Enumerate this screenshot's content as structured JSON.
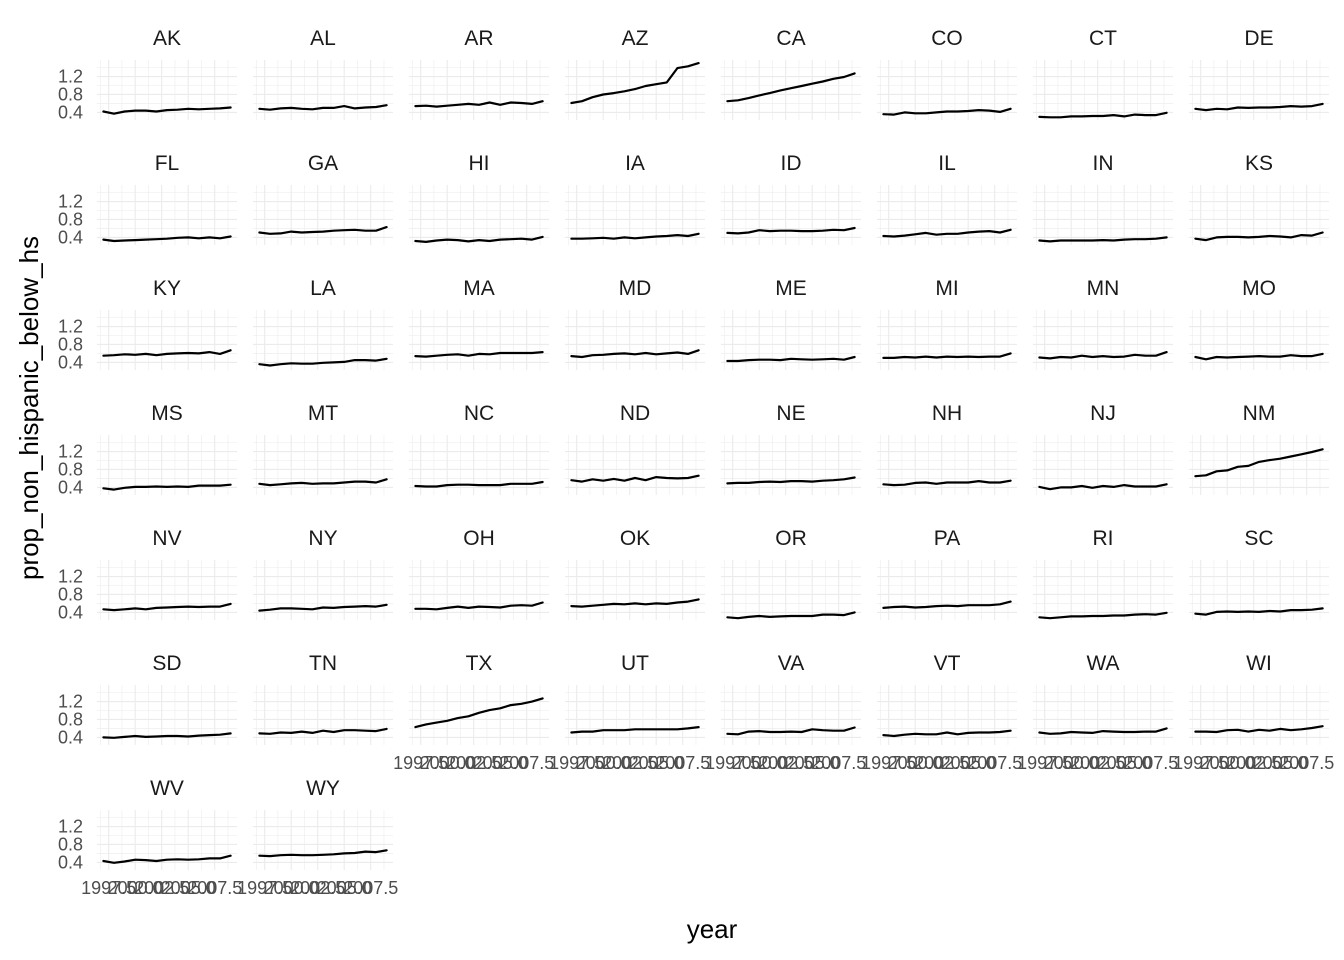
{
  "chart_data": {
    "type": "line",
    "layout": "facet_wrap",
    "xlabel": "year",
    "ylabel": "prop_non_hispanic_below_hs",
    "x_tick_labels": [
      "1997.5",
      "2000.0",
      "2002.5",
      "2005.0",
      "2007.5"
    ],
    "y_tick_labels": [
      "0.4",
      "0.8",
      "1.2"
    ],
    "x": [
      1997,
      1998,
      1999,
      2000,
      2001,
      2002,
      2003,
      2004,
      2005,
      2006,
      2007,
      2008,
      2009
    ],
    "xlim": [
      1996.4,
      2009.6
    ],
    "ylim": [
      0.23,
      1.57
    ],
    "y_ticks": [
      0.4,
      0.8,
      1.2
    ],
    "x_ticks": [
      1997.5,
      2000.0,
      2002.5,
      2005.0,
      2007.5
    ],
    "grid": true,
    "panels": [
      {
        "name": "AK",
        "values": [
          0.42,
          0.37,
          0.42,
          0.44,
          0.44,
          0.42,
          0.45,
          0.46,
          0.48,
          0.47,
          0.48,
          0.49,
          0.51
        ]
      },
      {
        "name": "AL",
        "values": [
          0.48,
          0.46,
          0.49,
          0.5,
          0.48,
          0.47,
          0.5,
          0.5,
          0.54,
          0.49,
          0.51,
          0.52,
          0.56
        ]
      },
      {
        "name": "AR",
        "values": [
          0.54,
          0.55,
          0.53,
          0.55,
          0.57,
          0.59,
          0.57,
          0.62,
          0.57,
          0.62,
          0.61,
          0.59,
          0.65
        ]
      },
      {
        "name": "AZ",
        "values": [
          0.61,
          0.65,
          0.74,
          0.8,
          0.83,
          0.87,
          0.92,
          0.99,
          1.03,
          1.07,
          1.39,
          1.43,
          1.5
        ]
      },
      {
        "name": "CA",
        "values": [
          0.65,
          0.67,
          0.72,
          0.78,
          0.83,
          0.89,
          0.94,
          0.99,
          1.04,
          1.09,
          1.15,
          1.19,
          1.27
        ]
      },
      {
        "name": "CO",
        "values": [
          0.36,
          0.35,
          0.4,
          0.38,
          0.38,
          0.4,
          0.42,
          0.42,
          0.43,
          0.45,
          0.44,
          0.41,
          0.48
        ]
      },
      {
        "name": "CT",
        "values": [
          0.3,
          0.29,
          0.29,
          0.31,
          0.31,
          0.32,
          0.32,
          0.34,
          0.31,
          0.35,
          0.34,
          0.34,
          0.39
        ]
      },
      {
        "name": "DE",
        "values": [
          0.48,
          0.45,
          0.48,
          0.47,
          0.51,
          0.5,
          0.51,
          0.51,
          0.52,
          0.54,
          0.53,
          0.54,
          0.59
        ]
      },
      {
        "name": "FL",
        "values": [
          0.35,
          0.32,
          0.33,
          0.34,
          0.35,
          0.36,
          0.37,
          0.39,
          0.4,
          0.38,
          0.4,
          0.38,
          0.42
        ]
      },
      {
        "name": "GA",
        "values": [
          0.51,
          0.48,
          0.49,
          0.53,
          0.51,
          0.52,
          0.53,
          0.55,
          0.56,
          0.57,
          0.55,
          0.55,
          0.63
        ]
      },
      {
        "name": "HI",
        "values": [
          0.32,
          0.3,
          0.33,
          0.35,
          0.34,
          0.31,
          0.34,
          0.32,
          0.35,
          0.36,
          0.37,
          0.35,
          0.41
        ]
      },
      {
        "name": "IA",
        "values": [
          0.37,
          0.37,
          0.38,
          0.39,
          0.37,
          0.4,
          0.38,
          0.4,
          0.42,
          0.43,
          0.45,
          0.43,
          0.48
        ]
      },
      {
        "name": "ID",
        "values": [
          0.5,
          0.49,
          0.51,
          0.56,
          0.54,
          0.55,
          0.55,
          0.54,
          0.54,
          0.55,
          0.57,
          0.56,
          0.61
        ]
      },
      {
        "name": "IL",
        "values": [
          0.43,
          0.42,
          0.44,
          0.47,
          0.5,
          0.46,
          0.48,
          0.48,
          0.51,
          0.53,
          0.54,
          0.51,
          0.57
        ]
      },
      {
        "name": "IN",
        "values": [
          0.33,
          0.31,
          0.33,
          0.33,
          0.33,
          0.33,
          0.34,
          0.33,
          0.35,
          0.36,
          0.36,
          0.37,
          0.4
        ]
      },
      {
        "name": "KS",
        "values": [
          0.37,
          0.34,
          0.4,
          0.41,
          0.41,
          0.4,
          0.41,
          0.43,
          0.42,
          0.4,
          0.45,
          0.44,
          0.51
        ]
      },
      {
        "name": "KY",
        "values": [
          0.55,
          0.56,
          0.58,
          0.57,
          0.59,
          0.56,
          0.59,
          0.6,
          0.61,
          0.6,
          0.63,
          0.59,
          0.67
        ]
      },
      {
        "name": "LA",
        "values": [
          0.36,
          0.33,
          0.36,
          0.38,
          0.37,
          0.37,
          0.39,
          0.4,
          0.41,
          0.45,
          0.45,
          0.44,
          0.48
        ]
      },
      {
        "name": "MA",
        "values": [
          0.54,
          0.53,
          0.55,
          0.57,
          0.58,
          0.55,
          0.59,
          0.58,
          0.61,
          0.61,
          0.61,
          0.61,
          0.63
        ]
      },
      {
        "name": "MD",
        "values": [
          0.54,
          0.52,
          0.56,
          0.57,
          0.59,
          0.6,
          0.58,
          0.61,
          0.58,
          0.6,
          0.62,
          0.59,
          0.67
        ]
      },
      {
        "name": "ME",
        "values": [
          0.43,
          0.43,
          0.45,
          0.46,
          0.46,
          0.45,
          0.48,
          0.47,
          0.46,
          0.47,
          0.48,
          0.46,
          0.52
        ]
      },
      {
        "name": "MI",
        "values": [
          0.5,
          0.5,
          0.52,
          0.51,
          0.53,
          0.51,
          0.53,
          0.52,
          0.53,
          0.52,
          0.53,
          0.53,
          0.6
        ]
      },
      {
        "name": "MN",
        "values": [
          0.51,
          0.49,
          0.52,
          0.51,
          0.55,
          0.52,
          0.54,
          0.52,
          0.53,
          0.57,
          0.55,
          0.55,
          0.63
        ]
      },
      {
        "name": "MO",
        "values": [
          0.52,
          0.47,
          0.52,
          0.51,
          0.52,
          0.53,
          0.54,
          0.53,
          0.53,
          0.56,
          0.54,
          0.54,
          0.59
        ]
      },
      {
        "name": "MS",
        "values": [
          0.38,
          0.35,
          0.39,
          0.41,
          0.41,
          0.42,
          0.41,
          0.42,
          0.41,
          0.44,
          0.44,
          0.44,
          0.46
        ]
      },
      {
        "name": "MT",
        "values": [
          0.48,
          0.45,
          0.47,
          0.49,
          0.5,
          0.48,
          0.49,
          0.49,
          0.51,
          0.53,
          0.53,
          0.51,
          0.58
        ]
      },
      {
        "name": "NC",
        "values": [
          0.43,
          0.42,
          0.42,
          0.45,
          0.46,
          0.46,
          0.45,
          0.45,
          0.45,
          0.48,
          0.48,
          0.48,
          0.52
        ]
      },
      {
        "name": "ND",
        "values": [
          0.56,
          0.53,
          0.58,
          0.55,
          0.59,
          0.55,
          0.61,
          0.56,
          0.63,
          0.61,
          0.6,
          0.61,
          0.66
        ]
      },
      {
        "name": "NE",
        "values": [
          0.49,
          0.5,
          0.5,
          0.52,
          0.53,
          0.52,
          0.54,
          0.54,
          0.53,
          0.55,
          0.56,
          0.58,
          0.62
        ]
      },
      {
        "name": "NH",
        "values": [
          0.47,
          0.45,
          0.46,
          0.5,
          0.51,
          0.48,
          0.51,
          0.51,
          0.51,
          0.54,
          0.51,
          0.51,
          0.55
        ]
      },
      {
        "name": "NJ",
        "values": [
          0.41,
          0.36,
          0.4,
          0.4,
          0.43,
          0.39,
          0.43,
          0.41,
          0.45,
          0.42,
          0.42,
          0.42,
          0.47
        ]
      },
      {
        "name": "NM",
        "values": [
          0.65,
          0.67,
          0.76,
          0.78,
          0.86,
          0.88,
          0.97,
          1.01,
          1.04,
          1.09,
          1.14,
          1.19,
          1.25
        ]
      },
      {
        "name": "NV",
        "values": [
          0.47,
          0.45,
          0.47,
          0.49,
          0.47,
          0.5,
          0.51,
          0.52,
          0.53,
          0.52,
          0.53,
          0.53,
          0.59
        ]
      },
      {
        "name": "NY",
        "values": [
          0.44,
          0.46,
          0.49,
          0.49,
          0.48,
          0.47,
          0.51,
          0.5,
          0.52,
          0.53,
          0.54,
          0.53,
          0.57
        ]
      },
      {
        "name": "OH",
        "values": [
          0.48,
          0.48,
          0.47,
          0.5,
          0.53,
          0.5,
          0.53,
          0.52,
          0.51,
          0.55,
          0.56,
          0.55,
          0.62
        ]
      },
      {
        "name": "OK",
        "values": [
          0.54,
          0.53,
          0.55,
          0.57,
          0.59,
          0.58,
          0.6,
          0.58,
          0.6,
          0.59,
          0.62,
          0.64,
          0.69
        ]
      },
      {
        "name": "OR",
        "values": [
          0.29,
          0.27,
          0.3,
          0.32,
          0.3,
          0.31,
          0.32,
          0.32,
          0.32,
          0.35,
          0.35,
          0.34,
          0.4
        ]
      },
      {
        "name": "PA",
        "values": [
          0.5,
          0.52,
          0.53,
          0.51,
          0.52,
          0.54,
          0.55,
          0.54,
          0.56,
          0.56,
          0.56,
          0.58,
          0.64
        ]
      },
      {
        "name": "RI",
        "values": [
          0.29,
          0.27,
          0.29,
          0.31,
          0.31,
          0.32,
          0.32,
          0.33,
          0.33,
          0.35,
          0.36,
          0.35,
          0.39
        ]
      },
      {
        "name": "SC",
        "values": [
          0.37,
          0.35,
          0.41,
          0.42,
          0.41,
          0.42,
          0.41,
          0.43,
          0.42,
          0.45,
          0.45,
          0.46,
          0.49
        ]
      },
      {
        "name": "SD",
        "values": [
          0.4,
          0.39,
          0.41,
          0.43,
          0.41,
          0.42,
          0.43,
          0.43,
          0.42,
          0.44,
          0.45,
          0.46,
          0.49
        ]
      },
      {
        "name": "TN",
        "values": [
          0.49,
          0.48,
          0.51,
          0.5,
          0.53,
          0.5,
          0.55,
          0.52,
          0.56,
          0.56,
          0.55,
          0.54,
          0.59
        ]
      },
      {
        "name": "TX",
        "values": [
          0.63,
          0.69,
          0.73,
          0.77,
          0.83,
          0.87,
          0.95,
          1.01,
          1.05,
          1.12,
          1.15,
          1.2,
          1.27
        ]
      },
      {
        "name": "UT",
        "values": [
          0.51,
          0.53,
          0.53,
          0.56,
          0.56,
          0.56,
          0.58,
          0.58,
          0.58,
          0.58,
          0.58,
          0.6,
          0.63
        ]
      },
      {
        "name": "VA",
        "values": [
          0.48,
          0.47,
          0.53,
          0.54,
          0.52,
          0.52,
          0.53,
          0.52,
          0.58,
          0.56,
          0.55,
          0.55,
          0.62
        ]
      },
      {
        "name": "VT",
        "values": [
          0.45,
          0.43,
          0.46,
          0.48,
          0.47,
          0.47,
          0.51,
          0.47,
          0.5,
          0.51,
          0.51,
          0.52,
          0.55
        ]
      },
      {
        "name": "WA",
        "values": [
          0.51,
          0.48,
          0.49,
          0.52,
          0.51,
          0.5,
          0.54,
          0.53,
          0.52,
          0.52,
          0.53,
          0.53,
          0.6
        ]
      },
      {
        "name": "WI",
        "values": [
          0.53,
          0.53,
          0.52,
          0.56,
          0.57,
          0.53,
          0.57,
          0.55,
          0.59,
          0.56,
          0.58,
          0.61,
          0.65
        ]
      },
      {
        "name": "WV",
        "values": [
          0.43,
          0.39,
          0.42,
          0.46,
          0.45,
          0.43,
          0.46,
          0.47,
          0.46,
          0.47,
          0.49,
          0.49,
          0.55
        ]
      },
      {
        "name": "WY",
        "values": [
          0.55,
          0.54,
          0.56,
          0.57,
          0.56,
          0.56,
          0.57,
          0.58,
          0.6,
          0.61,
          0.64,
          0.63,
          0.67
        ]
      }
    ]
  }
}
